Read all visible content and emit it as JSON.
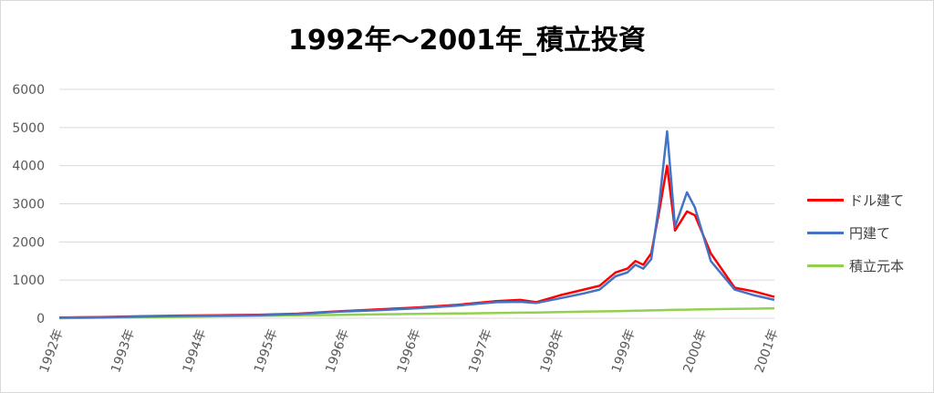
{
  "chart_data": {
    "type": "line",
    "title": "1992年～2001年_積立投資",
    "ylim": [
      0,
      6000
    ],
    "yticks": [
      "0",
      "1000",
      "2000",
      "3000",
      "4000",
      "5000",
      "6000"
    ],
    "grid": true,
    "legend_position": "right",
    "x_labels": [
      "1992年",
      "1993年",
      "1994年",
      "1995年",
      "1996年",
      "1996年",
      "1997年",
      "1998年",
      "1999年",
      "2000年",
      "2001年"
    ],
    "x": [
      1992.0,
      1992.5,
      1993.0,
      1993.5,
      1994.0,
      1994.5,
      1995.0,
      1995.5,
      1996.0,
      1996.5,
      1997.0,
      1997.5,
      1997.8,
      1998.0,
      1998.3,
      1998.6,
      1998.8,
      1999.0,
      1999.15,
      1999.25,
      1999.35,
      1999.45,
      1999.55,
      1999.65,
      1999.75,
      1999.9,
      2000.0,
      2000.2,
      2000.5,
      2000.75,
      2001.0
    ],
    "series": [
      {
        "name": "ドル建て",
        "color": "#ff0000",
        "values": [
          20,
          30,
          50,
          70,
          80,
          90,
          120,
          180,
          230,
          280,
          350,
          450,
          480,
          420,
          600,
          750,
          850,
          1200,
          1300,
          1500,
          1400,
          1700,
          2800,
          4000,
          2300,
          2800,
          2700,
          1700,
          800,
          700,
          560
        ]
      },
      {
        "name": "円建て",
        "color": "#4472c4",
        "values": [
          15,
          25,
          40,
          60,
          70,
          80,
          110,
          170,
          210,
          260,
          330,
          420,
          430,
          400,
          520,
          650,
          750,
          1100,
          1200,
          1400,
          1300,
          1550,
          3000,
          4900,
          2400,
          3300,
          2900,
          1500,
          750,
          600,
          480
        ]
      },
      {
        "name": "積立元本",
        "color": "#92d050",
        "values": [
          0,
          12,
          25,
          37,
          50,
          62,
          75,
          87,
          100,
          112,
          125,
          137,
          145,
          150,
          162,
          172,
          180,
          187,
          192,
          196,
          200,
          205,
          210,
          215,
          220,
          225,
          230,
          237,
          245,
          252,
          260
        ]
      }
    ]
  }
}
